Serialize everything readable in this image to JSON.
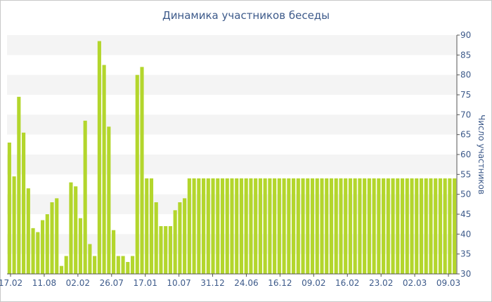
{
  "chart_data": {
    "type": "bar",
    "title": "Динамика участников беседы",
    "xlabel": "",
    "ylabel": "Число участников",
    "ylim": [
      30,
      90
    ],
    "y_ticks": [
      30,
      35,
      40,
      45,
      50,
      55,
      60,
      65,
      70,
      75,
      80,
      85,
      90
    ],
    "x_tick_labels": [
      "17.02",
      "11.08",
      "02.02",
      "26.07",
      "17.01",
      "10.07",
      "31.12",
      "24.06",
      "16.12",
      "09.02",
      "16.02",
      "23.02",
      "02.03",
      "09.03"
    ],
    "grid": "horizontal bands",
    "values": [
      63,
      54.5,
      74.5,
      65.5,
      51.5,
      41.5,
      40.5,
      43.5,
      45,
      48,
      49,
      32,
      34.5,
      53,
      52,
      44,
      68.5,
      37.5,
      34.5,
      88.5,
      82.5,
      67,
      41,
      34.5,
      34.5,
      33,
      34.5,
      80,
      82,
      54,
      54,
      48,
      42,
      42,
      42,
      46,
      48,
      49,
      54,
      54,
      54,
      54,
      54,
      54,
      54,
      54,
      54,
      54,
      54,
      54,
      54,
      54,
      54,
      54,
      54,
      54,
      54,
      54,
      54,
      54,
      54,
      54,
      54,
      54,
      54,
      54,
      54,
      54,
      54,
      54,
      54,
      54,
      54,
      54,
      54,
      54,
      54,
      54,
      54,
      54,
      54,
      54,
      54,
      54,
      54,
      54,
      54,
      54,
      54,
      54,
      54,
      54,
      54,
      54,
      54
    ],
    "colors": {
      "bar": "#b3d62c",
      "band": "#f4f4f4",
      "text": "#3d5a8a",
      "axis": "#555555"
    }
  }
}
